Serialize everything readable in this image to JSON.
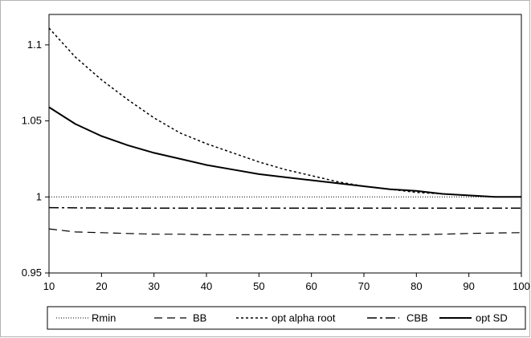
{
  "chart_data": {
    "type": "line",
    "xlim": [
      10,
      100
    ],
    "ylim": [
      0.95,
      1.12
    ],
    "x_ticks": [
      "10",
      "20",
      "30",
      "40",
      "50",
      "60",
      "70",
      "80",
      "90",
      "100"
    ],
    "y_ticks": [
      "0.95",
      "1",
      "1.05",
      "1.1"
    ],
    "grid": false,
    "legend_position": "bottom",
    "x": [
      10,
      15,
      20,
      25,
      30,
      35,
      40,
      45,
      50,
      55,
      60,
      65,
      70,
      75,
      80,
      85,
      90,
      95,
      100
    ],
    "series": [
      {
        "name": "Rmin",
        "style": "dotted",
        "color": "#000000",
        "values": [
          1,
          1,
          1,
          1,
          1,
          1,
          1,
          1,
          1,
          1,
          1,
          1,
          1,
          1,
          1,
          1,
          1,
          1,
          1
        ]
      },
      {
        "name": "BB",
        "style": "dashed",
        "color": "#000000",
        "values": [
          0.979,
          0.977,
          0.9765,
          0.976,
          0.9755,
          0.9755,
          0.9752,
          0.9752,
          0.9752,
          0.9752,
          0.9752,
          0.9752,
          0.9752,
          0.9752,
          0.9752,
          0.9755,
          0.976,
          0.9763,
          0.9765
        ]
      },
      {
        "name": "opt alpha root",
        "style": "short-dash",
        "color": "#000000",
        "values": [
          1.111,
          1.092,
          1.077,
          1.064,
          1.052,
          1.042,
          1.035,
          1.029,
          1.023,
          1.018,
          1.014,
          1.01,
          1.007,
          1.005,
          1.003,
          1.002,
          1.001,
          1.0,
          1.0
        ]
      },
      {
        "name": "CBB",
        "style": "dash-dot",
        "color": "#000000",
        "values": [
          0.993,
          0.9928,
          0.9927,
          0.9926,
          0.9926,
          0.9926,
          0.9926,
          0.9926,
          0.9926,
          0.9926,
          0.9926,
          0.9926,
          0.9926,
          0.9926,
          0.9926,
          0.9926,
          0.9926,
          0.9926,
          0.9926
        ]
      },
      {
        "name": "opt SD",
        "style": "solid",
        "color": "#000000",
        "values": [
          1.059,
          1.048,
          1.04,
          1.034,
          1.029,
          1.025,
          1.021,
          1.018,
          1.015,
          1.013,
          1.011,
          1.009,
          1.007,
          1.005,
          1.004,
          1.002,
          1.001,
          1.0,
          1.0
        ]
      }
    ]
  }
}
